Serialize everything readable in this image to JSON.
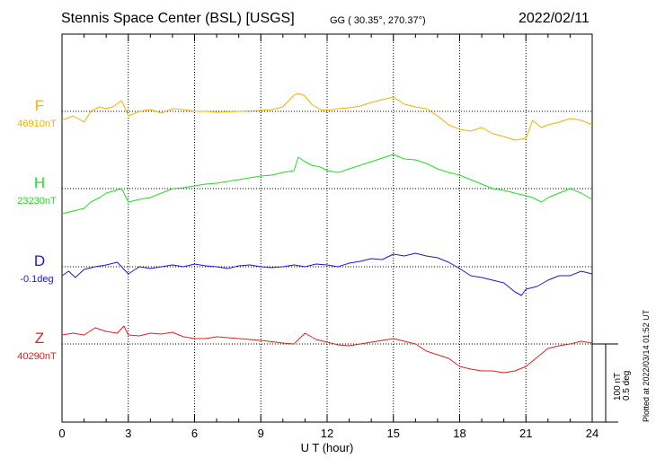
{
  "header": {
    "title": "Stennis Space Center (BSL)  [USGS]",
    "coords": "GG ( 30.35°, 270.37°)",
    "date": "2022/02/11"
  },
  "footer": {
    "plotted": "Plotted at 2022/03/14 01:52 UT"
  },
  "scale": {
    "line1": "100 nT",
    "line2": "0.5 deg"
  },
  "chart_data": {
    "type": "line",
    "xlabel": "U T (hour)",
    "xlim": [
      0,
      24
    ],
    "xticks": [
      "0",
      "3",
      "6",
      "9",
      "12",
      "15",
      "18",
      "21",
      "24"
    ],
    "grid": true,
    "series": [
      {
        "name": "F",
        "baseline": "46910nT",
        "color": "#f5b000",
        "x": [
          0,
          0.5,
          1,
          1.3,
          1.7,
          2,
          2.3,
          2.7,
          3,
          3.5,
          4,
          4.5,
          5,
          5.5,
          6,
          6.5,
          7,
          8,
          9,
          9.5,
          10,
          10.5,
          10.7,
          11,
          11.3,
          11.7,
          12,
          12.5,
          13,
          13.5,
          14,
          14.5,
          15,
          15.5,
          16,
          16.5,
          17,
          17.5,
          18,
          18.5,
          19,
          19.5,
          20,
          20.5,
          21,
          21.3,
          21.7,
          22,
          22.5,
          23,
          23.5,
          24
        ],
        "y": [
          -10,
          -5,
          -12,
          0,
          5,
          3,
          5,
          12,
          -5,
          0,
          2,
          -2,
          3,
          2,
          0,
          0,
          -1,
          0,
          1,
          2,
          5,
          18,
          20,
          17,
          8,
          2,
          1,
          3,
          4,
          6,
          10,
          13,
          16,
          8,
          5,
          3,
          -5,
          -15,
          -20,
          -22,
          -18,
          -25,
          -28,
          -32,
          -30,
          -10,
          -18,
          -15,
          -12,
          -8,
          -10,
          -15
        ]
      },
      {
        "name": "H",
        "baseline": "23230nT",
        "color": "#22dd22",
        "x": [
          0,
          0.5,
          1,
          1.3,
          1.7,
          2,
          2.3,
          2.7,
          3,
          3.5,
          4,
          4.5,
          5,
          5.5,
          6,
          6.5,
          7,
          8,
          9,
          9.5,
          10,
          10.5,
          10.7,
          11,
          11.3,
          11.7,
          12,
          12.5,
          13,
          13.5,
          14,
          14.5,
          15,
          15.5,
          16,
          16.5,
          17,
          17.5,
          18,
          18.5,
          19,
          19.5,
          20,
          20.5,
          21,
          21.3,
          21.7,
          22,
          22.5,
          23,
          23.5,
          24
        ],
        "y": [
          -28,
          -25,
          -22,
          -15,
          -10,
          -5,
          -3,
          0,
          -15,
          -12,
          -10,
          -5,
          0,
          1,
          3,
          5,
          6,
          10,
          14,
          15,
          18,
          20,
          35,
          30,
          26,
          24,
          20,
          18,
          22,
          26,
          30,
          34,
          38,
          33,
          32,
          28,
          22,
          18,
          15,
          10,
          5,
          0,
          -2,
          -5,
          -8,
          -10,
          -15,
          -10,
          -5,
          0,
          -5,
          -12
        ]
      },
      {
        "name": "D",
        "baseline": "-0.1deg",
        "color": "#1a1acc",
        "x": [
          0,
          0.3,
          0.6,
          1,
          1.5,
          2,
          2.5,
          3,
          3.5,
          4,
          4.5,
          5,
          5.5,
          6,
          6.5,
          7,
          7.5,
          8,
          8.5,
          9,
          9.5,
          10,
          10.5,
          11,
          11.5,
          12,
          12.5,
          13,
          13.5,
          14,
          14.5,
          15,
          15.5,
          16,
          16.5,
          17,
          17.5,
          18,
          18.5,
          19,
          19.5,
          20,
          20.5,
          20.8,
          21,
          21.5,
          22,
          22.5,
          23,
          23.5,
          24
        ],
        "y": [
          -10,
          -5,
          -12,
          -3,
          0,
          2,
          5,
          -8,
          0,
          -2,
          0,
          2,
          0,
          3,
          1,
          0,
          -2,
          1,
          2,
          0,
          -1,
          0,
          2,
          0,
          3,
          2,
          0,
          4,
          6,
          9,
          8,
          14,
          12,
          15,
          12,
          10,
          5,
          -2,
          -10,
          -12,
          -15,
          -18,
          -28,
          -32,
          -25,
          -22,
          -15,
          -10,
          -10,
          -5,
          -8
        ]
      },
      {
        "name": "Z",
        "baseline": "40290nT",
        "color": "#e02020",
        "x": [
          0,
          0.5,
          1,
          1.5,
          2,
          2.5,
          2.8,
          3,
          3.5,
          4,
          4.5,
          5,
          5.5,
          6,
          6.5,
          7,
          8,
          9,
          10,
          10.5,
          11,
          11.5,
          12,
          12.5,
          13,
          13.5,
          14,
          14.5,
          15,
          15.5,
          16,
          16.5,
          17,
          17.5,
          18,
          18.5,
          19,
          19.5,
          20,
          20.5,
          21,
          21.5,
          22,
          22.5,
          23,
          23.5,
          24
        ],
        "y": [
          10,
          12,
          10,
          18,
          14,
          12,
          20,
          10,
          9,
          12,
          11,
          13,
          8,
          6,
          6,
          8,
          6,
          4,
          1,
          0,
          12,
          5,
          2,
          -1,
          -2,
          0,
          2,
          4,
          6,
          3,
          0,
          -8,
          -12,
          -16,
          -25,
          -28,
          -30,
          -30,
          -32,
          -30,
          -25,
          -15,
          -5,
          -2,
          0,
          3,
          1
        ]
      }
    ]
  }
}
